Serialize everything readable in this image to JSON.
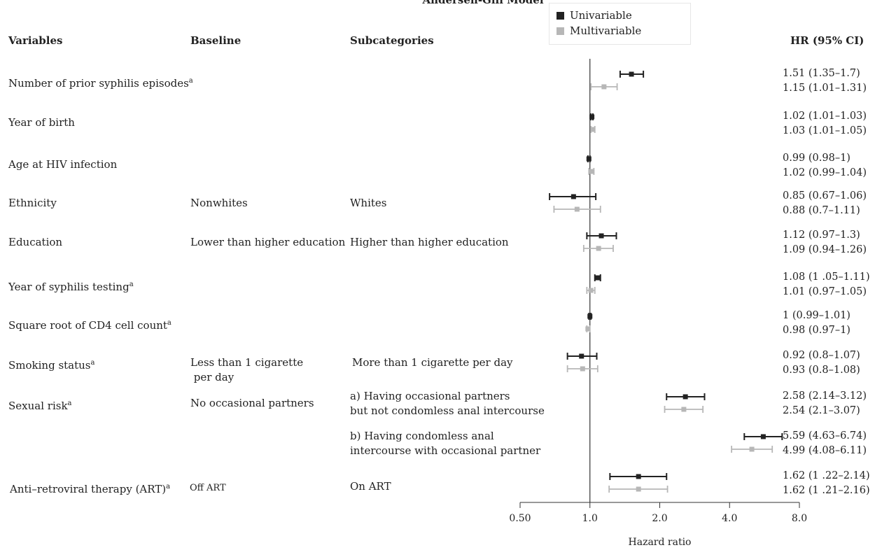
{
  "title": "Andersen-Gill Model",
  "legend": {
    "univariable": "Univariable",
    "multivariable": "Multivariable"
  },
  "headers": {
    "variables": "Variables",
    "baseline": "Baseline",
    "subcategories": "Subcategories",
    "hr": "HR (95% CI)"
  },
  "colors": {
    "univariable": "#222222",
    "multivariable": "#b7b7b7"
  },
  "rows": [
    {
      "variable": "Number of prior syphilis episodes",
      "variable_sup": "a",
      "baseline": "",
      "subcategory": "",
      "subcategory_2": "",
      "hr_uni": "1.51 (1.35–1.7)",
      "hr_multi": "1.15 (1.01–1.31)"
    },
    {
      "variable": "Year of birth",
      "variable_sup": "",
      "baseline": "",
      "subcategory": "",
      "subcategory_2": "",
      "hr_uni": "1.02 (1.01–1.03)",
      "hr_multi": "1.03 (1.01–1.05)"
    },
    {
      "variable": "Age at HIV infection",
      "variable_sup": "",
      "baseline": "",
      "subcategory": "",
      "subcategory_2": "",
      "hr_uni": "0.99 (0.98–1)",
      "hr_multi": "1.02 (0.99–1.04)"
    },
    {
      "variable": "Ethnicity",
      "variable_sup": "",
      "baseline": "Nonwhites",
      "subcategory": "Whites",
      "subcategory_2": "",
      "hr_uni": "0.85 (0.67–1.06)",
      "hr_multi": "0.88 (0.7–1.11)"
    },
    {
      "variable": "Education",
      "variable_sup": "",
      "baseline": "Lower than higher education",
      "subcategory": "Higher than higher education",
      "subcategory_2": "",
      "hr_uni": "1.12 (0.97–1.3)",
      "hr_multi": "1.09 (0.94–1.26)"
    },
    {
      "variable": "Year of syphilis testing",
      "variable_sup": "a",
      "baseline": "",
      "subcategory": "",
      "subcategory_2": "",
      "hr_uni": "1.08 (1 .05–1.11)",
      "hr_multi": "1.01 (0.97–1.05)"
    },
    {
      "variable": "Square root of CD4 cell count",
      "variable_sup": "a",
      "baseline": "",
      "subcategory": "",
      "subcategory_2": "",
      "hr_uni": "1 (0.99–1.01)",
      "hr_multi": "0.98 (0.97–1)"
    },
    {
      "variable": "Smoking status",
      "variable_sup": "a",
      "baseline": "Less than 1 cigarette",
      "baseline_2": " per day",
      "subcategory": "More than 1 cigarette per day",
      "subcategory_2": "",
      "hr_uni": "0.92 (0.8–1.07)",
      "hr_multi": "0.93 (0.8–1.08)"
    },
    {
      "variable": "Sexual risk",
      "variable_sup": "a",
      "baseline": "No occasional partners",
      "subcategory": "a) Having occasional partners",
      "subcategory_2": "but not condomless anal intercourse",
      "hr_uni": "2.58 (2.14–3.12)",
      "hr_multi": "2.54 (2.1–3.07)"
    },
    {
      "variable": "",
      "variable_sup": "",
      "baseline": "",
      "subcategory": "b) Having condomless anal",
      "subcategory_2": "intercourse with occasional partner",
      "hr_uni": "5.59 (4.63–6.74)",
      "hr_multi": "4.99 (4.08–6.11)"
    },
    {
      "variable": "Anti–retroviral therapy (ART)",
      "variable_sup": "a",
      "baseline": "Off ART",
      "subcategory": "On ART",
      "subcategory_2": "",
      "hr_uni": "1.62 (1 .22–2.14)",
      "hr_multi": "1.62 (1 .21–2.16)"
    }
  ],
  "chart_data": {
    "type": "forest",
    "title": "Andersen-Gill Model",
    "xlabel": "Hazard ratio",
    "x_scale": "log2",
    "xlim": [
      0.5,
      8.0
    ],
    "x_ticks": [
      0.5,
      1.0,
      2.0,
      4.0,
      8.0
    ],
    "x_tick_labels": [
      "0.50",
      "1.0",
      "2.0",
      "4.0",
      "8.0"
    ],
    "reference_line": 1.0,
    "series": [
      {
        "name": "Univariable",
        "estimates": [
          1.51,
          1.02,
          0.99,
          0.85,
          1.12,
          1.08,
          1.0,
          0.92,
          2.58,
          5.59,
          1.62
        ],
        "lower": [
          1.35,
          1.01,
          0.98,
          0.67,
          0.97,
          1.05,
          0.99,
          0.8,
          2.14,
          4.63,
          1.22
        ],
        "upper": [
          1.7,
          1.03,
          1.0,
          1.06,
          1.3,
          1.11,
          1.01,
          1.07,
          3.12,
          6.74,
          2.14
        ]
      },
      {
        "name": "Multivariable",
        "estimates": [
          1.15,
          1.03,
          1.02,
          0.88,
          1.09,
          1.01,
          0.98,
          0.93,
          2.54,
          4.99,
          1.62
        ],
        "lower": [
          1.01,
          1.01,
          0.99,
          0.7,
          0.94,
          0.97,
          0.97,
          0.8,
          2.1,
          4.08,
          1.21
        ],
        "upper": [
          1.31,
          1.05,
          1.04,
          1.11,
          1.26,
          1.05,
          1.0,
          1.08,
          3.07,
          6.11,
          2.16
        ]
      }
    ]
  }
}
